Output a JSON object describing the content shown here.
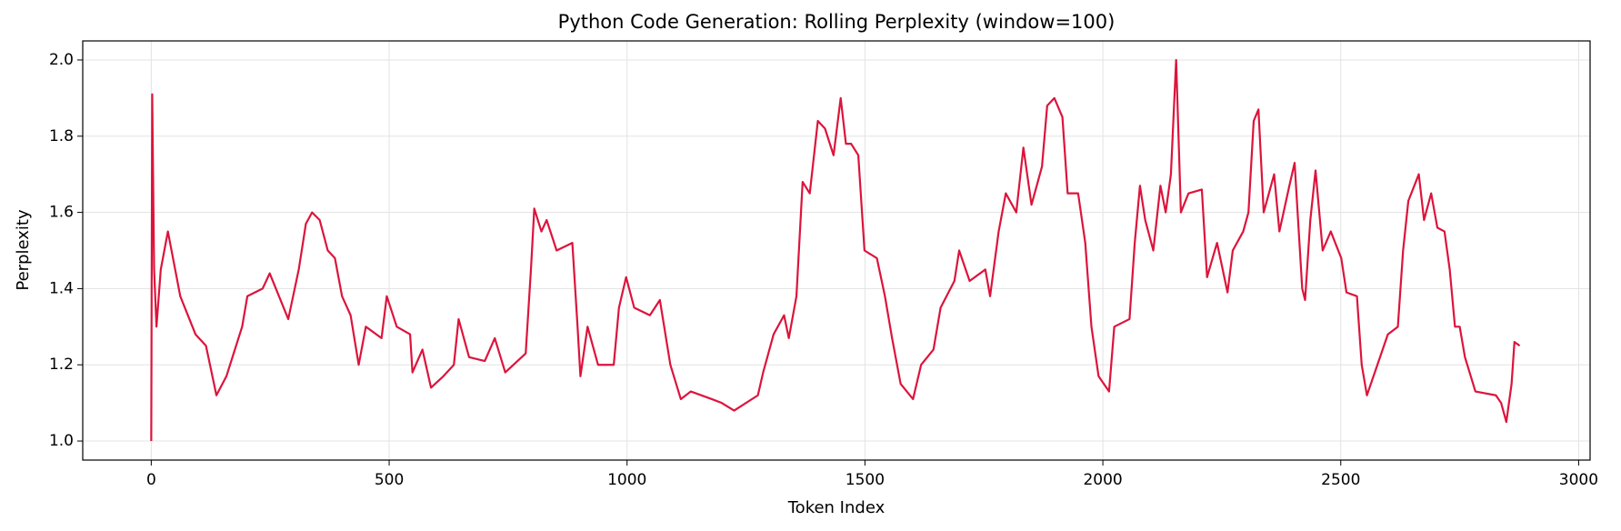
{
  "chart_data": {
    "type": "line",
    "title": "Python Code Generation: Rolling Perplexity (window=100)",
    "x_label": "Token Index",
    "y_label": "Perplexity",
    "x": [
      0,
      2,
      6,
      11,
      20,
      35,
      61,
      93,
      115,
      137,
      158,
      191,
      202,
      234,
      249,
      288,
      310,
      325,
      338,
      354,
      371,
      386,
      401,
      419,
      436,
      451,
      484,
      495,
      516,
      544,
      549,
      570,
      588,
      614,
      636,
      646,
      668,
      701,
      722,
      744,
      787,
      798,
      805,
      820,
      831,
      852,
      885,
      896,
      902,
      917,
      939,
      972,
      983,
      998,
      1015,
      1048,
      1069,
      1091,
      1113,
      1134,
      1178,
      1199,
      1225,
      1275,
      1286,
      1308,
      1330,
      1340,
      1356,
      1369,
      1384,
      1401,
      1416,
      1434,
      1449,
      1460,
      1471,
      1486,
      1499,
      1525,
      1542,
      1557,
      1575,
      1601,
      1618,
      1644,
      1659,
      1688,
      1698,
      1720,
      1753,
      1763,
      1781,
      1796,
      1818,
      1833,
      1850,
      1872,
      1883,
      1898,
      1915,
      1926,
      1948,
      1963,
      1976,
      1991,
      2013,
      2024,
      2056,
      2067,
      2078,
      2089,
      2106,
      2121,
      2132,
      2143,
      2154,
      2164,
      2180,
      2208,
      2219,
      2240,
      2262,
      2273,
      2295,
      2306,
      2317,
      2327,
      2338,
      2360,
      2371,
      2392,
      2403,
      2419,
      2425,
      2436,
      2447,
      2462,
      2479,
      2501,
      2512,
      2534,
      2544,
      2555,
      2577,
      2599,
      2620,
      2631,
      2642,
      2664,
      2675,
      2690,
      2703,
      2718,
      2729,
      2740,
      2750,
      2761,
      2783,
      2826,
      2837,
      2848,
      2859,
      2865,
      2876
    ],
    "series": [
      {
        "name": "Perplexity",
        "color": "#dc143c",
        "values": [
          1.0,
          1.91,
          1.45,
          1.3,
          1.45,
          1.55,
          1.38,
          1.28,
          1.25,
          1.12,
          1.17,
          1.3,
          1.38,
          1.4,
          1.44,
          1.32,
          1.45,
          1.57,
          1.6,
          1.58,
          1.5,
          1.48,
          1.38,
          1.33,
          1.2,
          1.3,
          1.27,
          1.38,
          1.3,
          1.28,
          1.18,
          1.24,
          1.14,
          1.17,
          1.2,
          1.32,
          1.22,
          1.21,
          1.27,
          1.18,
          1.23,
          1.45,
          1.61,
          1.55,
          1.58,
          1.5,
          1.52,
          1.3,
          1.17,
          1.3,
          1.2,
          1.2,
          1.35,
          1.43,
          1.35,
          1.33,
          1.37,
          1.2,
          1.11,
          1.13,
          1.11,
          1.1,
          1.08,
          1.12,
          1.18,
          1.28,
          1.33,
          1.27,
          1.38,
          1.68,
          1.65,
          1.84,
          1.82,
          1.75,
          1.9,
          1.78,
          1.78,
          1.75,
          1.5,
          1.48,
          1.38,
          1.27,
          1.15,
          1.11,
          1.2,
          1.24,
          1.35,
          1.42,
          1.5,
          1.42,
          1.45,
          1.38,
          1.55,
          1.65,
          1.6,
          1.77,
          1.62,
          1.72,
          1.88,
          1.9,
          1.85,
          1.65,
          1.65,
          1.52,
          1.3,
          1.17,
          1.13,
          1.3,
          1.32,
          1.52,
          1.67,
          1.58,
          1.5,
          1.67,
          1.6,
          1.7,
          2.0,
          1.6,
          1.65,
          1.66,
          1.43,
          1.52,
          1.39,
          1.5,
          1.55,
          1.6,
          1.84,
          1.87,
          1.6,
          1.7,
          1.55,
          1.67,
          1.73,
          1.4,
          1.37,
          1.58,
          1.71,
          1.5,
          1.55,
          1.48,
          1.39,
          1.38,
          1.2,
          1.12,
          1.2,
          1.28,
          1.3,
          1.5,
          1.63,
          1.7,
          1.58,
          1.65,
          1.56,
          1.55,
          1.45,
          1.3,
          1.3,
          1.22,
          1.13,
          1.12,
          1.1,
          1.05,
          1.15,
          1.26,
          1.25
        ]
      }
    ],
    "xlim": [
      -144,
      3024
    ],
    "ylim": [
      0.95,
      2.05
    ],
    "xticks": [
      0,
      500,
      1000,
      1500,
      2000,
      2500,
      3000
    ],
    "yticks": [
      {
        "value": 1.0,
        "label": "1.0"
      },
      1.2,
      1.4,
      1.6,
      1.8,
      {
        "value": 2.0,
        "label": "2.0"
      }
    ],
    "grid": true
  }
}
